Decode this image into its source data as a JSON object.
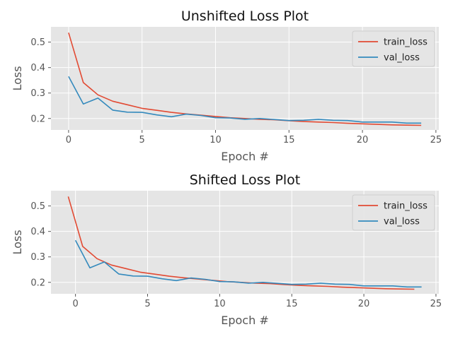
{
  "chart_data": [
    {
      "type": "line",
      "title": "Unshifted Loss Plot",
      "xlabel": "Epoch #",
      "ylabel": "Loss",
      "xlim": [
        -1.2,
        25.2
      ],
      "ylim": [
        0.155,
        0.56
      ],
      "xticks": [
        0,
        5,
        10,
        15,
        20,
        25
      ],
      "yticks": [
        0.2,
        0.3,
        0.4,
        0.5
      ],
      "grid": true,
      "legend": "top-right",
      "series": [
        {
          "name": "train_loss",
          "color": "#E24A33",
          "x": [
            0,
            1,
            2,
            3,
            4,
            5,
            6,
            7,
            8,
            9,
            10,
            11,
            12,
            13,
            14,
            15,
            16,
            17,
            18,
            19,
            20,
            21,
            22,
            23,
            24
          ],
          "values": [
            0.537,
            0.341,
            0.293,
            0.268,
            0.254,
            0.24,
            0.232,
            0.224,
            0.218,
            0.213,
            0.208,
            0.203,
            0.2,
            0.197,
            0.195,
            0.191,
            0.188,
            0.186,
            0.184,
            0.181,
            0.179,
            0.177,
            0.175,
            0.174,
            0.173
          ]
        },
        {
          "name": "val_loss",
          "color": "#348ABD",
          "x": [
            0,
            1,
            2,
            3,
            4,
            5,
            6,
            7,
            8,
            9,
            10,
            11,
            12,
            13,
            14,
            15,
            16,
            17,
            18,
            19,
            20,
            21,
            22,
            23,
            24
          ],
          "values": [
            0.365,
            0.257,
            0.28,
            0.233,
            0.225,
            0.224,
            0.214,
            0.207,
            0.217,
            0.212,
            0.203,
            0.202,
            0.197,
            0.2,
            0.196,
            0.192,
            0.193,
            0.197,
            0.193,
            0.192,
            0.186,
            0.186,
            0.186,
            0.182,
            0.182
          ]
        }
      ]
    },
    {
      "type": "line",
      "title": "Shifted Loss Plot",
      "xlabel": "Epoch #",
      "ylabel": "Loss",
      "xlim": [
        -1.7,
        25.2
      ],
      "ylim": [
        0.155,
        0.56
      ],
      "xticks": [
        0,
        5,
        10,
        15,
        20,
        25
      ],
      "yticks": [
        0.2,
        0.3,
        0.4,
        0.5
      ],
      "grid": true,
      "legend": "top-right",
      "series": [
        {
          "name": "train_loss",
          "color": "#E24A33",
          "x": [
            -0.5,
            0.5,
            1.5,
            2.5,
            3.5,
            4.5,
            5.5,
            6.5,
            7.5,
            8.5,
            9.5,
            10.5,
            11.5,
            12.5,
            13.5,
            14.5,
            15.5,
            16.5,
            17.5,
            18.5,
            19.5,
            20.5,
            21.5,
            22.5,
            23.5
          ],
          "values": [
            0.537,
            0.341,
            0.293,
            0.268,
            0.254,
            0.24,
            0.232,
            0.224,
            0.218,
            0.213,
            0.208,
            0.203,
            0.2,
            0.197,
            0.195,
            0.191,
            0.188,
            0.186,
            0.184,
            0.181,
            0.179,
            0.177,
            0.175,
            0.174,
            0.173
          ]
        },
        {
          "name": "val_loss",
          "color": "#348ABD",
          "x": [
            0,
            1,
            2,
            3,
            4,
            5,
            6,
            7,
            8,
            9,
            10,
            11,
            12,
            13,
            14,
            15,
            16,
            17,
            18,
            19,
            20,
            21,
            22,
            23,
            24
          ],
          "values": [
            0.365,
            0.257,
            0.28,
            0.233,
            0.225,
            0.224,
            0.214,
            0.207,
            0.217,
            0.212,
            0.203,
            0.202,
            0.197,
            0.2,
            0.196,
            0.192,
            0.193,
            0.197,
            0.193,
            0.192,
            0.186,
            0.186,
            0.186,
            0.182,
            0.182
          ]
        }
      ]
    }
  ]
}
